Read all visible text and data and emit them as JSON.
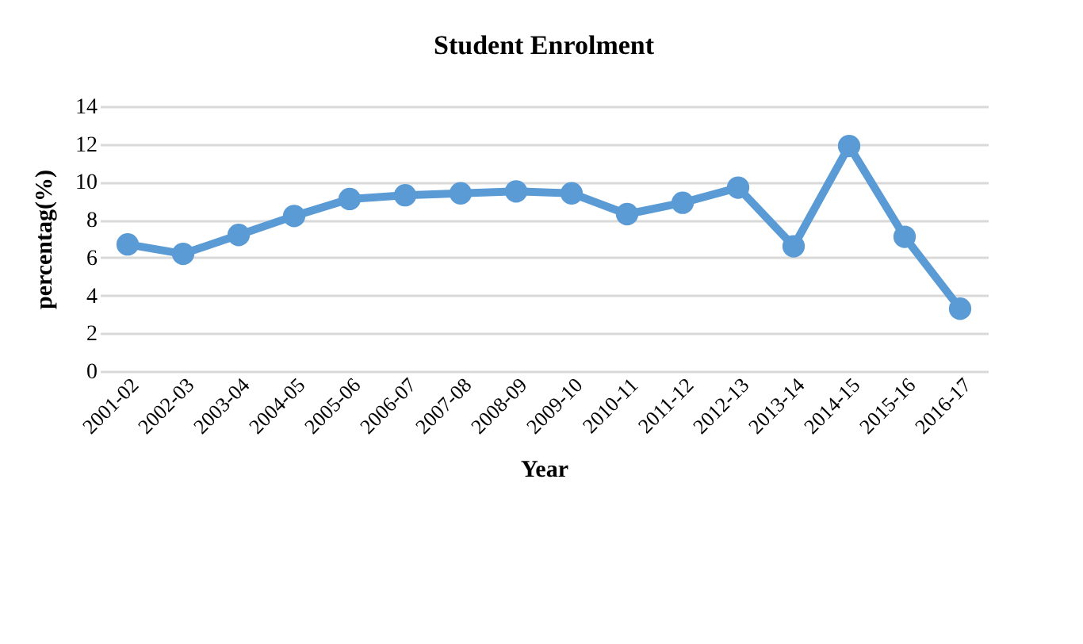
{
  "chart_data": {
    "type": "line",
    "title": "Student Enrolment",
    "xlabel": "Year",
    "ylabel": "percentag(%)",
    "categories": [
      "2001-02",
      "2002-03",
      "2003-04",
      "2004-05",
      "2005-06",
      "2006-07",
      "2007-08",
      "2008-09",
      "2009-10",
      "2010-11",
      "2011-12",
      "2012-13",
      "2013-14",
      "2014-15",
      "2015-16",
      "2016-17"
    ],
    "series": [
      {
        "color": "#5b9bd5",
        "values": [
          6.7,
          6.2,
          7.2,
          8.2,
          9.1,
          9.3,
          9.4,
          9.5,
          9.4,
          8.3,
          8.9,
          9.7,
          6.6,
          11.9,
          7.1,
          3.3
        ]
      }
    ],
    "ylim": [
      0,
      14
    ],
    "yticks": [
      0,
      2,
      4,
      6,
      8,
      10,
      12,
      14
    ],
    "grid": "y",
    "marker": "circle",
    "legend": false
  }
}
